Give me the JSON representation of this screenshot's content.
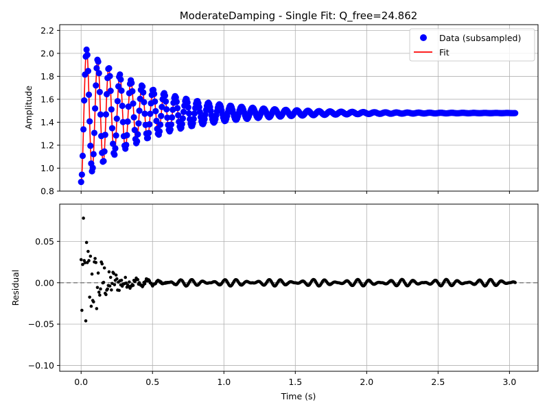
{
  "title": "ModerateDamping - Single Fit: Q_free=24.862",
  "colors": {
    "data": "#0000ff",
    "fit": "#ff0000",
    "residual": "#000000",
    "zero_line": "#808080",
    "grid": "#b0b0b0"
  },
  "top_panel": {
    "ylabel": "Amplitude",
    "legend": [
      {
        "label": "Data (subsampled)",
        "marker": "circle",
        "color": "#0000ff"
      },
      {
        "label": "Fit",
        "marker": "line",
        "color": "#ff0000"
      }
    ],
    "legend_position": "top-right"
  },
  "bottom_panel": {
    "ylabel": "Residual",
    "xlabel": "Time (s)"
  },
  "chart_data": [
    {
      "type": "scatter",
      "panel": "top",
      "title": "ModerateDamping - Single Fit: Q_free=24.862",
      "xlabel": "",
      "ylabel": "Amplitude",
      "xlim": [
        -0.15,
        3.2
      ],
      "ylim": [
        0.8,
        2.25
      ],
      "xticks": [
        0.0,
        0.5,
        1.0,
        1.5,
        2.0,
        2.5,
        3.0
      ],
      "yticks": [
        0.8,
        1.0,
        1.2,
        1.4,
        1.6,
        1.8,
        2.0,
        2.2
      ],
      "ytick_labels": [
        "0.8",
        "1.0",
        "1.2",
        "1.4",
        "1.6",
        "1.8",
        "2.0",
        "2.2"
      ],
      "grid": true,
      "legend": "top-right",
      "model": {
        "description": "damped sinusoid approximating plotted data",
        "offset": 1.48,
        "initial_amplitude": 0.6,
        "period": 0.0775,
        "decay_time": 0.47,
        "t_start": 0.0,
        "t_end": 3.04
      },
      "series": [
        {
          "name": "Data (subsampled)",
          "style": "markers",
          "color": "#0000ff",
          "n_points": 560
        },
        {
          "name": "Fit",
          "style": "line",
          "color": "#ff0000"
        }
      ]
    },
    {
      "type": "scatter",
      "panel": "bottom",
      "xlabel": "Time (s)",
      "ylabel": "Residual",
      "xlim": [
        -0.15,
        3.2
      ],
      "ylim": [
        -0.107,
        0.095
      ],
      "xticks": [
        0.0,
        0.5,
        1.0,
        1.5,
        2.0,
        2.5,
        3.0
      ],
      "xtick_labels": [
        "0.0",
        "0.5",
        "1.0",
        "1.5",
        "2.0",
        "2.5",
        "3.0"
      ],
      "yticks": [
        -0.1,
        -0.05,
        0.0,
        0.05
      ],
      "ytick_labels": [
        "−0.10",
        "−0.05",
        "0.00",
        "0.05"
      ],
      "grid": true,
      "zero_line": {
        "y": 0.0,
        "style": "dashed",
        "color": "#808080"
      },
      "residual_model": {
        "early_scatter_amplitude": 0.09,
        "early_decay_time": 0.12,
        "steady_ripple_amplitude": 0.004,
        "beat_period": 0.3
      },
      "series": [
        {
          "style": "markers",
          "color": "#000000",
          "n_points": 560
        }
      ]
    }
  ]
}
